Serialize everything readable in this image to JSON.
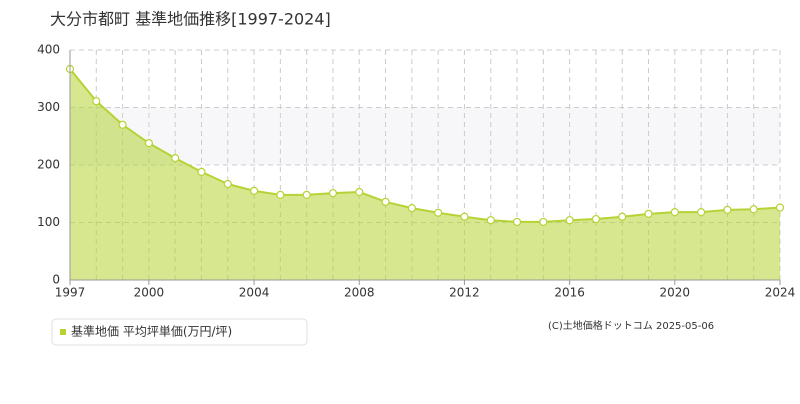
{
  "chart_data": {
    "type": "area",
    "title": "大分市都町 基準地価推移[1997-2024]",
    "x": [
      1997,
      1998,
      1999,
      2000,
      2001,
      2002,
      2003,
      2004,
      2005,
      2006,
      2007,
      2008,
      2009,
      2010,
      2011,
      2012,
      2013,
      2014,
      2015,
      2016,
      2017,
      2018,
      2019,
      2020,
      2021,
      2022,
      2023,
      2024
    ],
    "series": [
      {
        "name": "基準地価 平均坪単価(万円/坪)",
        "color": "#b5d334",
        "values": [
          367,
          311,
          270,
          238,
          212,
          188,
          167,
          155,
          148,
          148,
          151,
          153,
          136,
          125,
          117,
          110,
          104,
          101,
          101,
          104,
          106,
          110,
          115,
          118,
          118,
          122,
          123,
          126
        ]
      }
    ],
    "xlim": [
      1997,
      2024
    ],
    "xticks": [
      1997,
      2000,
      2004,
      2008,
      2012,
      2016,
      2020,
      2024
    ],
    "ylim": [
      0,
      400
    ],
    "yticks": [
      0,
      100,
      200,
      300,
      400
    ],
    "grid": true,
    "annotation": "(C)土地価格ドットコム 2025-05-06"
  }
}
